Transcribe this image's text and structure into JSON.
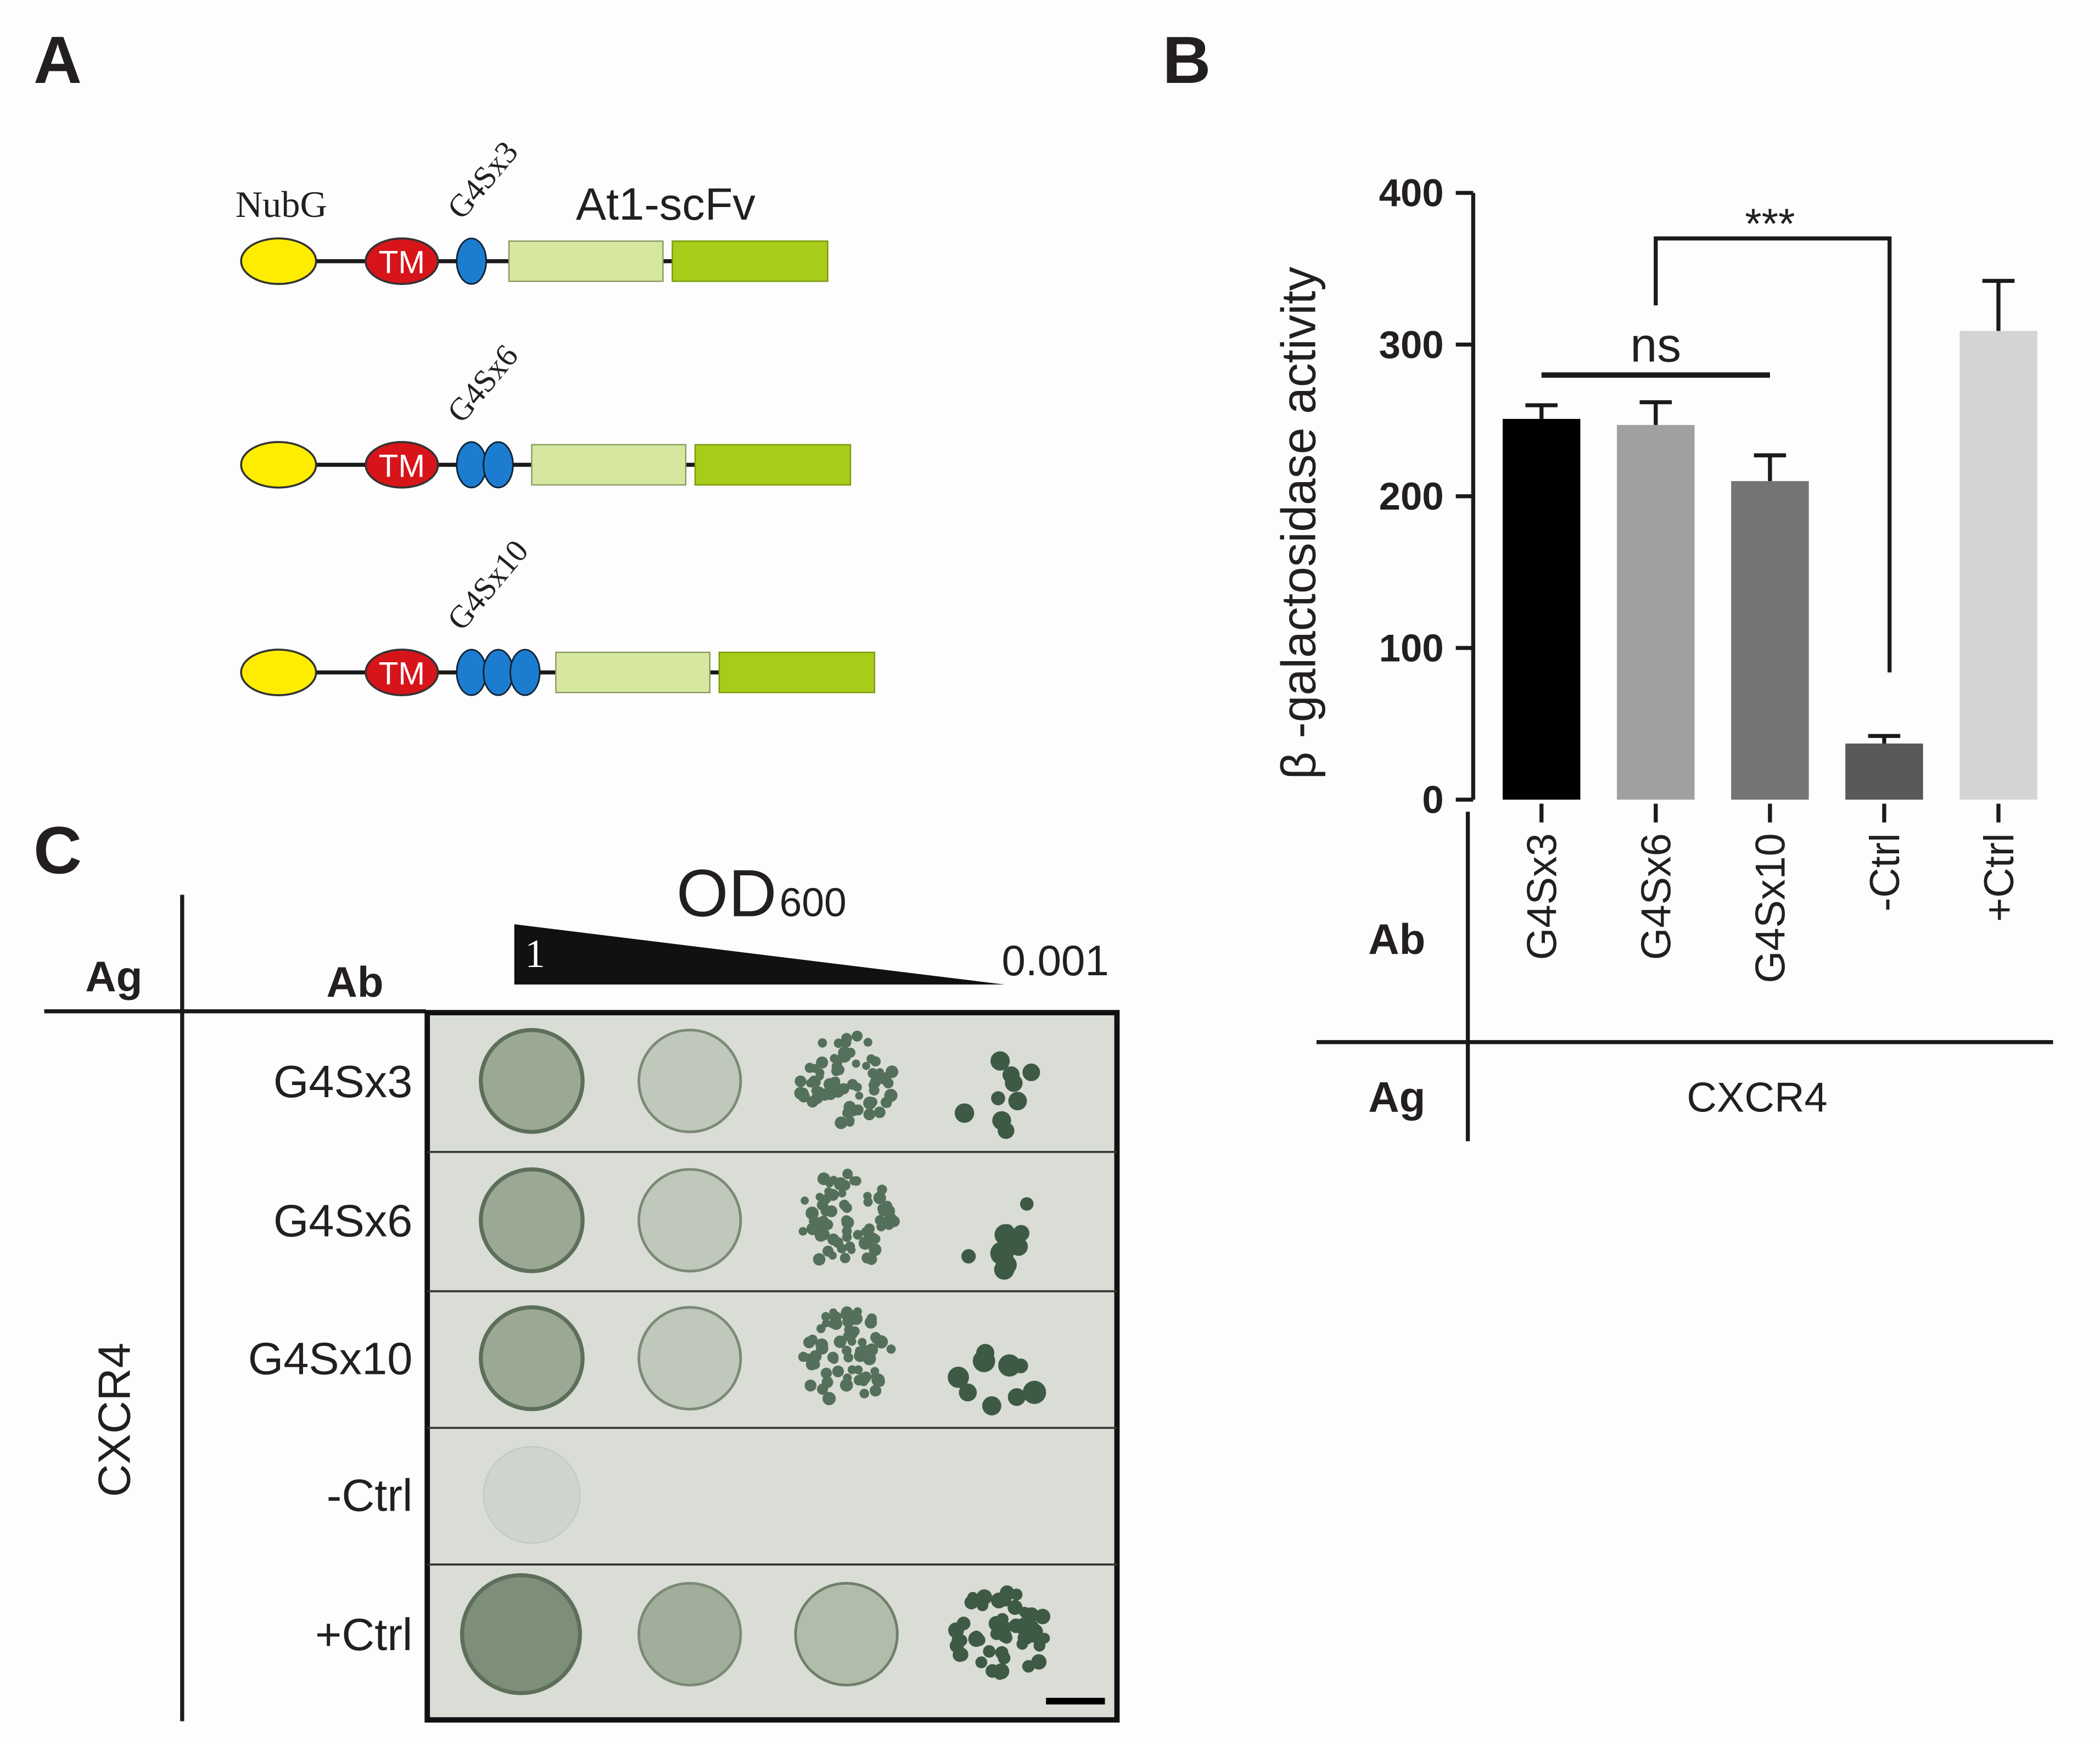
{
  "panel_labels": [
    "A",
    "B",
    "C"
  ],
  "panel_a": {
    "nubg": "NubG",
    "tm": "TM",
    "scfv": "At1-scFv",
    "constructs": [
      "G4Sx3",
      "G4Sx6",
      "G4Sx10"
    ]
  },
  "chart_data": {
    "type": "bar",
    "ylabel": "β -galactosidase activity",
    "categories": [
      "G4Sx3",
      "G4Sx6",
      "G4Sx10",
      "-Ctrl",
      "+Ctrl"
    ],
    "values": [
      251,
      247,
      210,
      37,
      309
    ],
    "errors": [
      9,
      15,
      17,
      5,
      33
    ],
    "colors": [
      "#000000",
      "#a0a0a2",
      "#747476",
      "#58595b",
      "#d4d4d4"
    ],
    "ylim": [
      0,
      400
    ],
    "yticks": [
      0,
      100,
      200,
      300,
      400
    ],
    "annotations": [
      "ns",
      "***"
    ],
    "table": {
      "ab": "Ab",
      "ag": "Ag",
      "antigen": "CXCR4"
    }
  },
  "panel_c": {
    "ag": "Ag",
    "ab": "Ab",
    "od": "OD",
    "od_sub": "600",
    "dilution_start": 1,
    "dilution_end": 0.001,
    "antigen": "CXCR4",
    "rows": [
      "G4Sx3",
      "G4Sx6",
      "G4Sx10",
      "-Ctrl",
      "+Ctrl"
    ]
  }
}
